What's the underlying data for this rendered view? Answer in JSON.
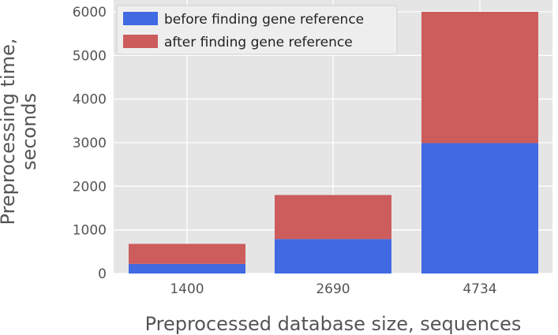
{
  "chart_data": {
    "type": "bar",
    "stacked": true,
    "categories": [
      "1400",
      "2690",
      "4734"
    ],
    "series": [
      {
        "name": "before finding gene reference",
        "values": [
          220,
          790,
          2990
        ],
        "color": "#4169e1"
      },
      {
        "name": "after finding gene reference",
        "values": [
          460,
          1010,
          3010
        ],
        "color": "#cd5c5c"
      }
    ],
    "xlabel": "Preprocessed database size, sequences",
    "ylabel_lines": [
      "Preprocessing time,",
      "seconds"
    ],
    "ylim": [
      0,
      6000
    ],
    "yticks": [
      "0",
      "1000",
      "2000",
      "3000",
      "4000",
      "5000",
      "6000"
    ],
    "grid": true,
    "legend_position": "top-left",
    "style": {
      "plot_background": "#e5e5e5",
      "grid_color": "#ffffff"
    }
  }
}
